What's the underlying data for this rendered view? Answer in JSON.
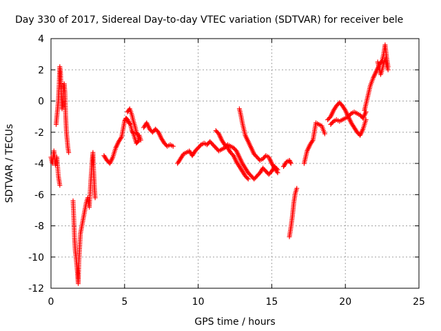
{
  "chart_data": {
    "type": "scatter",
    "title": "Day 330 of 2017, Sidereal Day-to-day VTEC variation (SDTVAR) for receiver bele",
    "xlabel": "GPS time / hours",
    "ylabel": "SDTVAR / TECUs",
    "xlim": [
      0,
      25
    ],
    "ylim": [
      -12,
      4
    ],
    "xticks": [
      0,
      5,
      10,
      15,
      20,
      25
    ],
    "yticks": [
      -12,
      -10,
      -8,
      -6,
      -4,
      -2,
      0,
      2,
      4
    ],
    "grid": true,
    "marker": "+",
    "marker_color": "#ff0000",
    "series": [
      {
        "name": "SDTVAR",
        "segments": [
          [
            [
              0.0,
              -3.6
            ],
            [
              0.1,
              -4.0
            ],
            [
              0.2,
              -3.2
            ],
            [
              0.3,
              -4.1
            ],
            [
              0.4,
              -3.6
            ],
            [
              0.5,
              -4.8
            ],
            [
              0.6,
              -5.4
            ]
          ],
          [
            [
              0.35,
              -1.5
            ],
            [
              0.45,
              -0.5
            ],
            [
              0.5,
              0.0
            ],
            [
              0.55,
              1.0
            ],
            [
              0.6,
              2.2
            ],
            [
              0.65,
              1.8
            ],
            [
              0.7,
              0.5
            ],
            [
              0.75,
              -0.5
            ],
            [
              0.8,
              0.0
            ],
            [
              0.85,
              0.8
            ],
            [
              0.9,
              1.1
            ],
            [
              0.95,
              0.5
            ],
            [
              1.0,
              -1.0
            ],
            [
              1.05,
              -2.0
            ],
            [
              1.1,
              -2.5
            ],
            [
              1.15,
              -3.0
            ],
            [
              1.2,
              -3.3
            ]
          ],
          [
            [
              1.5,
              -6.4
            ],
            [
              1.55,
              -7.5
            ],
            [
              1.6,
              -8.8
            ],
            [
              1.65,
              -9.6
            ],
            [
              1.7,
              -10.0
            ],
            [
              1.75,
              -10.5
            ],
            [
              1.8,
              -11.0
            ],
            [
              1.85,
              -11.7
            ],
            [
              1.9,
              -10.2
            ],
            [
              2.0,
              -8.5
            ],
            [
              2.1,
              -8.0
            ],
            [
              2.2,
              -7.5
            ],
            [
              2.3,
              -7.0
            ],
            [
              2.4,
              -6.5
            ],
            [
              2.5,
              -6.2
            ],
            [
              2.6,
              -6.8
            ],
            [
              2.7,
              -5.2
            ],
            [
              2.75,
              -4.5
            ],
            [
              2.8,
              -3.8
            ],
            [
              2.85,
              -3.3
            ],
            [
              2.9,
              -4.5
            ],
            [
              2.95,
              -5.5
            ],
            [
              3.0,
              -6.2
            ]
          ],
          [
            [
              3.6,
              -3.5
            ],
            [
              3.8,
              -3.8
            ],
            [
              4.0,
              -4.0
            ],
            [
              4.2,
              -3.6
            ],
            [
              4.4,
              -3.0
            ],
            [
              4.6,
              -2.6
            ],
            [
              4.8,
              -2.3
            ],
            [
              4.9,
              -1.8
            ],
            [
              5.0,
              -1.3
            ],
            [
              5.1,
              -1.1
            ],
            [
              5.2,
              -1.2
            ],
            [
              5.3,
              -1.4
            ],
            [
              5.4,
              -1.5
            ],
            [
              5.5,
              -1.9
            ],
            [
              5.6,
              -2.1
            ],
            [
              5.7,
              -2.4
            ],
            [
              5.8,
              -2.7
            ],
            [
              5.9,
              -2.6
            ],
            [
              6.0,
              -2.2
            ],
            [
              6.1,
              -2.5
            ]
          ],
          [
            [
              5.2,
              -0.7
            ],
            [
              5.35,
              -0.5
            ],
            [
              5.5,
              -0.9
            ],
            [
              5.6,
              -1.3
            ],
            [
              5.7,
              -1.6
            ],
            [
              5.8,
              -2.0
            ],
            [
              5.9,
              -2.2
            ],
            [
              6.0,
              -2.5
            ]
          ],
          [
            [
              6.3,
              -1.7
            ],
            [
              6.5,
              -1.4
            ],
            [
              6.7,
              -1.8
            ],
            [
              6.9,
              -2.0
            ],
            [
              7.1,
              -1.8
            ],
            [
              7.3,
              -2.0
            ],
            [
              7.5,
              -2.4
            ],
            [
              7.7,
              -2.7
            ],
            [
              7.9,
              -2.9
            ],
            [
              8.1,
              -2.8
            ],
            [
              8.3,
              -2.9
            ]
          ],
          [
            [
              8.6,
              -4.0
            ],
            [
              8.8,
              -3.7
            ],
            [
              9.0,
              -3.4
            ],
            [
              9.2,
              -3.3
            ],
            [
              9.4,
              -3.2
            ],
            [
              9.6,
              -3.5
            ],
            [
              9.8,
              -3.2
            ],
            [
              10.0,
              -3.0
            ],
            [
              10.2,
              -2.8
            ],
            [
              10.4,
              -2.7
            ],
            [
              10.6,
              -2.8
            ],
            [
              10.8,
              -2.6
            ],
            [
              11.0,
              -2.8
            ],
            [
              11.2,
              -3.0
            ],
            [
              11.4,
              -3.2
            ],
            [
              11.6,
              -3.1
            ],
            [
              11.8,
              -3.0
            ],
            [
              12.0,
              -2.8
            ],
            [
              12.2,
              -2.9
            ],
            [
              12.4,
              -3.0
            ],
            [
              12.6,
              -3.2
            ],
            [
              12.8,
              -3.6
            ],
            [
              13.0,
              -4.0
            ],
            [
              13.2,
              -4.3
            ],
            [
              13.4,
              -4.6
            ],
            [
              13.6,
              -4.8
            ],
            [
              13.8,
              -5.0
            ],
            [
              14.0,
              -4.8
            ],
            [
              14.2,
              -4.6
            ],
            [
              14.4,
              -4.3
            ],
            [
              14.6,
              -4.5
            ],
            [
              14.8,
              -4.7
            ],
            [
              15.0,
              -4.5
            ],
            [
              15.2,
              -4.2
            ],
            [
              15.4,
              -4.4
            ]
          ],
          [
            [
              11.2,
              -1.9
            ],
            [
              11.4,
              -2.1
            ],
            [
              11.6,
              -2.5
            ],
            [
              11.8,
              -2.8
            ],
            [
              12.0,
              -3.0
            ],
            [
              12.2,
              -3.3
            ],
            [
              12.4,
              -3.5
            ],
            [
              12.6,
              -3.9
            ],
            [
              12.8,
              -4.2
            ],
            [
              13.0,
              -4.5
            ],
            [
              13.2,
              -4.8
            ],
            [
              13.4,
              -5.0
            ]
          ],
          [
            [
              12.8,
              -0.5
            ],
            [
              12.9,
              -0.9
            ],
            [
              13.0,
              -1.4
            ],
            [
              13.1,
              -1.8
            ],
            [
              13.2,
              -2.2
            ],
            [
              13.4,
              -2.6
            ],
            [
              13.6,
              -3.0
            ],
            [
              13.8,
              -3.4
            ],
            [
              14.0,
              -3.6
            ],
            [
              14.2,
              -3.8
            ],
            [
              14.4,
              -3.7
            ],
            [
              14.6,
              -3.5
            ],
            [
              14.8,
              -3.6
            ],
            [
              15.0,
              -4.0
            ],
            [
              15.2,
              -4.3
            ],
            [
              15.4,
              -4.6
            ]
          ],
          [
            [
              15.8,
              -4.2
            ],
            [
              16.0,
              -3.9
            ],
            [
              16.2,
              -3.8
            ],
            [
              16.3,
              -4.0
            ]
          ],
          [
            [
              16.2,
              -8.7
            ],
            [
              16.3,
              -8.1
            ],
            [
              16.4,
              -7.4
            ],
            [
              16.5,
              -6.5
            ],
            [
              16.6,
              -5.9
            ],
            [
              16.7,
              -5.6
            ]
          ],
          [
            [
              17.2,
              -4.0
            ],
            [
              17.4,
              -3.2
            ],
            [
              17.6,
              -2.8
            ],
            [
              17.8,
              -2.5
            ],
            [
              18.0,
              -1.4
            ],
            [
              18.2,
              -1.5
            ],
            [
              18.4,
              -1.6
            ],
            [
              18.6,
              -2.1
            ]
          ],
          [
            [
              18.8,
              -1.2
            ],
            [
              19.0,
              -1.0
            ],
            [
              19.2,
              -0.6
            ],
            [
              19.4,
              -0.3
            ],
            [
              19.6,
              -0.1
            ],
            [
              19.8,
              -0.3
            ],
            [
              20.0,
              -0.6
            ],
            [
              20.2,
              -1.0
            ],
            [
              20.4,
              -1.4
            ],
            [
              20.6,
              -1.7
            ],
            [
              20.8,
              -2.0
            ],
            [
              21.0,
              -2.2
            ],
            [
              21.2,
              -1.8
            ],
            [
              21.4,
              -1.2
            ]
          ],
          [
            [
              19.0,
              -1.5
            ],
            [
              19.2,
              -1.3
            ],
            [
              19.4,
              -1.2
            ],
            [
              19.6,
              -1.3
            ],
            [
              19.8,
              -1.2
            ],
            [
              20.0,
              -1.1
            ],
            [
              20.2,
              -1.0
            ],
            [
              20.4,
              -0.8
            ],
            [
              20.6,
              -0.7
            ],
            [
              20.8,
              -0.8
            ],
            [
              21.0,
              -0.9
            ],
            [
              21.2,
              -1.1
            ],
            [
              21.4,
              -0.7
            ]
          ],
          [
            [
              21.3,
              -0.6
            ],
            [
              21.5,
              0.2
            ],
            [
              21.7,
              1.0
            ],
            [
              21.9,
              1.5
            ],
            [
              22.1,
              1.9
            ],
            [
              22.3,
              2.3
            ],
            [
              22.5,
              2.6
            ],
            [
              22.6,
              3.0
            ],
            [
              22.7,
              3.6
            ],
            [
              22.8,
              2.8
            ],
            [
              22.9,
              2.2
            ]
          ],
          [
            [
              22.2,
              2.5
            ],
            [
              22.3,
              2.1
            ],
            [
              22.4,
              1.7
            ],
            [
              22.5,
              2.0
            ],
            [
              22.6,
              2.4
            ],
            [
              22.7,
              2.7
            ],
            [
              22.8,
              2.3
            ],
            [
              22.9,
              2.0
            ]
          ]
        ]
      }
    ]
  }
}
